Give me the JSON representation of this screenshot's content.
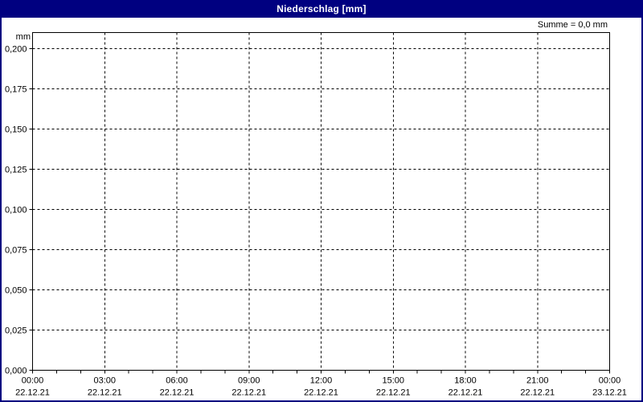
{
  "window": {
    "title": "Niederschlag [mm]"
  },
  "summary_label": "Summe = 0,0 mm",
  "colors": {
    "titlebar_bg": "#000080",
    "titlebar_text": "#ffffff",
    "window_border": "#000080",
    "plot_border": "#000000",
    "grid": "#000000",
    "text": "#000000",
    "background": "#ffffff"
  },
  "chart_data": {
    "type": "bar",
    "title": "Niederschlag [mm]",
    "xlabel": "",
    "ylabel": "mm",
    "ylim": [
      0,
      0.2
    ],
    "ytick_step": 0.025,
    "ytick_labels": [
      "0,000",
      "0,025",
      "0,050",
      "0,075",
      "0,100",
      "0,125",
      "0,150",
      "0,175",
      "0,200"
    ],
    "xtick_labels": [
      {
        "time": "00:00",
        "date": "22.12.21"
      },
      {
        "time": "03:00",
        "date": "22.12.21"
      },
      {
        "time": "06:00",
        "date": "22.12.21"
      },
      {
        "time": "09:00",
        "date": "22.12.21"
      },
      {
        "time": "12:00",
        "date": "22.12.21"
      },
      {
        "time": "15:00",
        "date": "22.12.21"
      },
      {
        "time": "18:00",
        "date": "22.12.21"
      },
      {
        "time": "21:00",
        "date": "22.12.21"
      },
      {
        "time": "00:00",
        "date": "23.12.21"
      }
    ],
    "minor_xticks_per_major": 3,
    "grid": true,
    "legend_position": "none",
    "annotation": "Summe = 0,0 mm",
    "series": [
      {
        "name": "Niederschlag",
        "values": [],
        "sum": 0.0,
        "sum_label": "0,0 mm"
      }
    ]
  }
}
